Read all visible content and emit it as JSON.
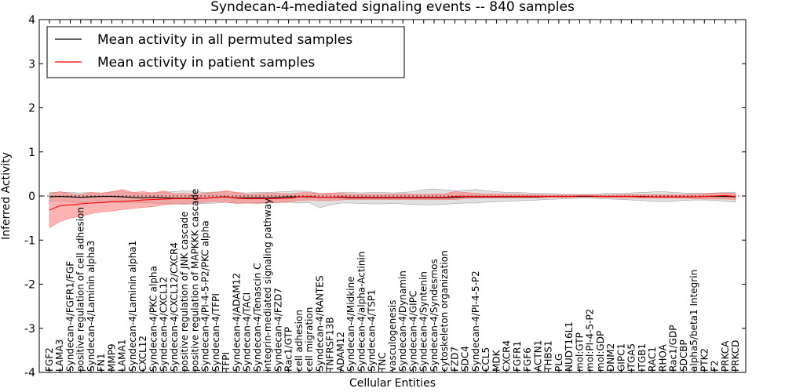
{
  "chart_data": {
    "type": "line",
    "title": "Syndecan-4-mediated signaling events -- 840 samples",
    "xlabel": "Cellular Entities",
    "ylabel": "Inferred Activity",
    "ylim": [
      -4,
      4
    ],
    "yticks": [
      -4,
      -3,
      -2,
      -1,
      0,
      1,
      2,
      3,
      4
    ],
    "legend_position": "top-left",
    "colors": {
      "permuted": "#000000",
      "patient": "#ff0000",
      "patient_band": "#ff7777",
      "permuted_band": "#bbbbbb"
    },
    "categories": [
      "FGF2",
      "LAMA3",
      "Syndecan-4/FGFR1/FGF",
      "positive regulation of cell adhesion",
      "Syndecan-4/Laminin alpha3",
      "FN1",
      "MMP9",
      "LAMA1",
      "Syndecan-4/Laminin alpha1",
      "CXCL12",
      "Syndecan-4/PKC alpha",
      "Syndecan-4/CXCL12",
      "Syndecan-4/CXCL12/CXCR4",
      "positive regulation of JNK cascade",
      "positive regulation of MAPKKK cascade",
      "Syndecan-4/PI-4-5-P2/PKC alpha",
      "Syndecan-4/TFPI",
      "TFPI",
      "Syndecan-4/ADAM12",
      "Syndecan-4/TACI",
      "Syndecan-4/Tenascin C",
      "integrin-mediated signaling pathway",
      "Syndecan-4/FZD7",
      "Rac1/GTP",
      "cell adhesion",
      "cell migration",
      "Syndecan-4/RANTES",
      "TNFRSF13B",
      "ADAM12",
      "Syndecan-4/Midkine",
      "Syndecan-4/alpha-Actinin",
      "Syndecan-4/TSP1",
      "TNC",
      "vasculogenesis",
      "Syndecan-4/Dynamin",
      "Syndecan-4/GIPC",
      "Syndecan-4/Syntenin",
      "Syndecan-4/Syndesmos",
      "cytoskeleton organization",
      "FZD7",
      "SDC4",
      "Syndecan-4/PI-4-5-P2",
      "CCL5",
      "MDK",
      "CXCR4",
      "FGFR1",
      "FGF6",
      "ACTN1",
      "THBS1",
      "PLG",
      "NUDT16L1",
      "mol:GTP",
      "mol:PI-4-5-P2",
      "mol:GDP",
      "DNM2",
      "GIPC1",
      "ITGA5",
      "ITGB1",
      "RAC1",
      "RHOA",
      "Rac1/GDP",
      "SDCBP",
      "alpha5/beta1 Integrin",
      "PTK2",
      "F2",
      "PRKCA",
      "PRKCD"
    ],
    "series": [
      {
        "name": "Mean activity in all permuted samples",
        "color": "#000000",
        "values": [
          -0.02,
          -0.01,
          -0.02,
          -0.03,
          -0.02,
          -0.01,
          -0.01,
          -0.02,
          -0.03,
          -0.04,
          -0.03,
          -0.04,
          -0.05,
          -0.05,
          -0.05,
          -0.05,
          -0.03,
          -0.02,
          -0.04,
          -0.04,
          -0.04,
          -0.04,
          -0.03,
          -0.02,
          -0.02,
          -0.02,
          -0.03,
          -0.03,
          -0.03,
          -0.04,
          -0.04,
          -0.04,
          -0.04,
          -0.04,
          -0.04,
          -0.04,
          -0.04,
          -0.04,
          -0.04,
          -0.03,
          -0.02,
          -0.02,
          -0.02,
          -0.02,
          -0.02,
          -0.02,
          -0.02,
          -0.02,
          -0.01,
          -0.01,
          -0.01,
          -0.01,
          -0.01,
          -0.01,
          -0.01,
          -0.01,
          -0.01,
          -0.01,
          -0.02,
          -0.02,
          -0.02,
          -0.02,
          -0.02,
          -0.01,
          -0.01,
          -0.01,
          -0.02
        ],
        "band_upper": [
          0.08,
          0.09,
          0.08,
          0.07,
          0.08,
          0.07,
          0.09,
          0.1,
          0.07,
          0.06,
          0.08,
          0.08,
          0.1,
          0.12,
          0.1,
          0.08,
          0.09,
          0.1,
          0.08,
          0.07,
          0.08,
          0.08,
          0.09,
          0.1,
          0.12,
          0.1,
          0.06,
          0.06,
          0.08,
          0.08,
          0.07,
          0.08,
          0.08,
          0.07,
          0.08,
          0.1,
          0.14,
          0.16,
          0.14,
          0.12,
          0.13,
          0.15,
          0.12,
          0.1,
          0.08,
          0.08,
          0.07,
          0.06,
          0.06,
          0.05,
          0.04,
          0.04,
          0.04,
          0.05,
          0.06,
          0.06,
          0.07,
          0.08,
          0.09,
          0.1,
          0.08,
          0.07,
          0.06,
          0.06,
          0.07,
          0.08,
          0.08
        ],
        "band_lower": [
          -0.12,
          -0.11,
          -0.14,
          -0.15,
          -0.13,
          -0.12,
          -0.14,
          -0.15,
          -0.14,
          -0.15,
          -0.16,
          -0.17,
          -0.18,
          -0.19,
          -0.18,
          -0.17,
          -0.16,
          -0.14,
          -0.16,
          -0.16,
          -0.17,
          -0.16,
          -0.15,
          -0.14,
          -0.16,
          -0.15,
          -0.27,
          -0.2,
          -0.16,
          -0.16,
          -0.17,
          -0.18,
          -0.18,
          -0.17,
          -0.18,
          -0.19,
          -0.2,
          -0.2,
          -0.19,
          -0.17,
          -0.16,
          -0.16,
          -0.14,
          -0.13,
          -0.12,
          -0.11,
          -0.1,
          -0.09,
          -0.08,
          -0.07,
          -0.06,
          -0.05,
          -0.05,
          -0.06,
          -0.07,
          -0.08,
          -0.09,
          -0.1,
          -0.12,
          -0.13,
          -0.12,
          -0.1,
          -0.09,
          -0.09,
          -0.1,
          -0.12,
          -0.14
        ]
      },
      {
        "name": "Mean activity in patient samples",
        "color": "#ff0000",
        "values": [
          -0.32,
          -0.22,
          -0.2,
          -0.18,
          -0.16,
          -0.15,
          -0.13,
          -0.12,
          -0.11,
          -0.09,
          -0.08,
          -0.07,
          -0.06,
          -0.06,
          -0.06,
          -0.05,
          -0.03,
          -0.02,
          -0.05,
          -0.06,
          -0.06,
          -0.06,
          -0.06,
          -0.05,
          -0.02,
          -0.01,
          -0.03,
          -0.03,
          -0.02,
          -0.03,
          -0.03,
          -0.03,
          -0.03,
          -0.03,
          -0.03,
          -0.03,
          -0.03,
          -0.03,
          -0.03,
          -0.01,
          -0.01,
          -0.01,
          -0.01,
          -0.01,
          -0.01,
          -0.01,
          -0.01,
          -0.01,
          -0.01,
          -0.01,
          -0.01,
          0.0,
          0.0,
          -0.01,
          -0.01,
          -0.01,
          -0.01,
          -0.02,
          -0.02,
          -0.02,
          -0.02,
          -0.02,
          -0.02,
          -0.01,
          0.0,
          0.01,
          -0.01
        ],
        "band_upper": [
          0.05,
          0.1,
          0.05,
          0.03,
          0.08,
          0.06,
          0.1,
          0.15,
          0.08,
          0.1,
          0.06,
          0.12,
          0.05,
          0.06,
          0.04,
          0.06,
          0.08,
          0.12,
          0.08,
          0.04,
          0.05,
          0.06,
          0.06,
          0.05,
          0.07,
          0.08,
          0.05,
          0.07,
          0.06,
          0.04,
          0.04,
          0.04,
          0.04,
          0.04,
          0.05,
          0.04,
          0.04,
          0.05,
          0.05,
          0.1,
          0.08,
          0.06,
          0.05,
          0.05,
          0.04,
          0.04,
          0.03,
          0.03,
          0.02,
          0.02,
          0.02,
          0.02,
          0.02,
          0.02,
          0.02,
          0.03,
          0.03,
          0.03,
          0.03,
          0.03,
          0.03,
          0.03,
          0.04,
          0.05,
          0.06,
          0.07,
          0.06
        ],
        "band_lower": [
          -0.72,
          -0.58,
          -0.5,
          -0.46,
          -0.4,
          -0.36,
          -0.34,
          -0.31,
          -0.28,
          -0.26,
          -0.24,
          -0.2,
          -0.18,
          -0.17,
          -0.16,
          -0.14,
          -0.12,
          -0.14,
          -0.17,
          -0.16,
          -0.16,
          -0.15,
          -0.15,
          -0.14,
          -0.1,
          -0.09,
          -0.1,
          -0.1,
          -0.09,
          -0.08,
          -0.08,
          -0.08,
          -0.08,
          -0.08,
          -0.08,
          -0.08,
          -0.08,
          -0.08,
          -0.08,
          -0.08,
          -0.06,
          -0.05,
          -0.05,
          -0.05,
          -0.04,
          -0.04,
          -0.04,
          -0.04,
          -0.03,
          -0.03,
          -0.03,
          -0.02,
          -0.02,
          -0.03,
          -0.03,
          -0.04,
          -0.04,
          -0.05,
          -0.05,
          -0.05,
          -0.05,
          -0.05,
          -0.06,
          -0.07,
          -0.07,
          -0.07,
          -0.08
        ]
      }
    ]
  }
}
